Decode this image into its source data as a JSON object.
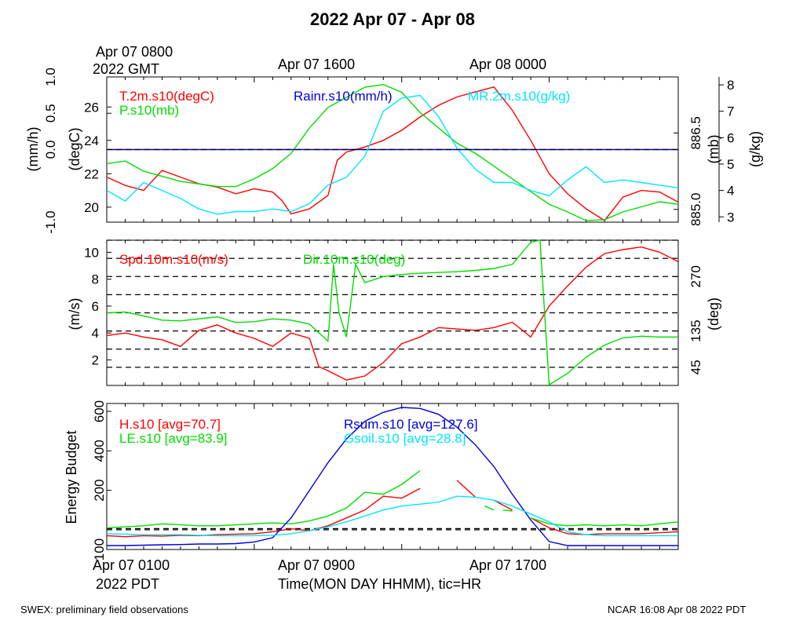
{
  "title": "2022 Apr 07 - Apr 08",
  "top_axis": {
    "first_label_line1": "Apr 07 0800",
    "first_label_line2": "2022 GMT",
    "labels": [
      "Apr 07 1600",
      "Apr 08 0000"
    ]
  },
  "bottom_axis": {
    "first_label_line1": "Apr 07 0100",
    "first_label_line2": "2022 PDT",
    "labels": [
      "Apr 07 0900",
      "Apr 07 1700"
    ],
    "xlabel": "Time(MON DAY HHMM), tic=HR"
  },
  "footer": {
    "left": "SWEX: preliminary field observations",
    "right": "NCAR 16:08 Apr 08 2022 PDT"
  },
  "colors": {
    "red": "#ff0000",
    "green": "#00dd00",
    "blue": "#0000dd",
    "cyan": "#00e5ff",
    "black": "#000000"
  },
  "chart_data": [
    {
      "type": "line",
      "panel": "top",
      "x_unit": "hours since Apr 07 0100 PDT",
      "xlim": [
        0,
        31
      ],
      "axes": {
        "left_outer": {
          "label": "(mm/h)",
          "ticks": [
            "-1.0",
            "0.0",
            "0.5",
            "1.0"
          ],
          "ylim": [
            -1.0,
            1.0
          ]
        },
        "left_inner": {
          "label": "(degC)",
          "ticks": [
            "20",
            "22",
            "24",
            "26"
          ],
          "ylim": [
            19.1,
            27.8
          ]
        },
        "right_inner": {
          "label": "(mb)",
          "ticks": [
            "885.0",
            "886.5"
          ],
          "ylim": [
            884.75,
            887.6
          ]
        },
        "right_outer": {
          "label": "(g/kg)",
          "ticks": [
            "3",
            "4",
            "5",
            "6",
            "7",
            "8"
          ],
          "ylim": [
            2.8,
            8.3
          ]
        }
      },
      "legend": [
        {
          "label": "T.2m.s10(degC)",
          "color": "#ff0000"
        },
        {
          "label": "P.s10(mb)",
          "color": "#00dd00"
        },
        {
          "label": "Rainr.s10(mm/h)",
          "color": "#0000dd"
        },
        {
          "label": "MR.2m.s10(g/kg)",
          "color": "#00e5ff"
        }
      ],
      "series": [
        {
          "name": "T.2m.s10(degC)",
          "axis": "left_inner",
          "color": "#ff0000",
          "x": [
            0,
            1,
            2,
            2.5,
            3,
            4,
            5,
            6,
            7,
            8,
            9,
            9.5,
            10,
            11,
            12,
            12.5,
            13,
            14,
            15,
            16,
            17,
            18,
            19,
            20,
            21,
            22,
            23,
            24,
            25,
            26,
            27,
            28,
            29,
            30,
            31
          ],
          "y": [
            21.8,
            21.3,
            21.0,
            21.6,
            22.2,
            21.8,
            21.4,
            21.2,
            20.8,
            21.1,
            20.9,
            20.4,
            19.6,
            19.9,
            20.7,
            22.8,
            23.3,
            23.6,
            24.0,
            24.6,
            25.4,
            26.1,
            26.6,
            26.9,
            27.2,
            25.8,
            24.0,
            22.0,
            20.8,
            19.9,
            19.2,
            20.6,
            21.0,
            20.9,
            20.3
          ]
        },
        {
          "name": "P.s10(mb)",
          "axis": "right_inner",
          "color": "#00dd00",
          "x": [
            0,
            1,
            2,
            3,
            4,
            5,
            6,
            7,
            8,
            9,
            10,
            11,
            12,
            13,
            14,
            15,
            16,
            17,
            18,
            19,
            20,
            21,
            22,
            23,
            24,
            25,
            26,
            27,
            28,
            29,
            30,
            31
          ],
          "y": [
            885.9,
            885.95,
            885.75,
            885.65,
            885.55,
            885.5,
            885.45,
            885.45,
            885.6,
            885.8,
            886.1,
            886.6,
            887.0,
            887.2,
            887.4,
            887.45,
            887.3,
            886.9,
            886.6,
            886.3,
            886.1,
            885.85,
            885.6,
            885.35,
            885.1,
            884.95,
            884.78,
            884.8,
            884.95,
            885.05,
            885.15,
            885.1
          ]
        },
        {
          "name": "Rainr.s10(mm/h)",
          "axis": "left_outer",
          "color": "#0000dd",
          "x": [
            0,
            31
          ],
          "y": [
            0.0,
            0.0
          ]
        },
        {
          "name": "MR.2m.s10(g/kg)",
          "axis": "right_outer",
          "color": "#00e5ff",
          "x": [
            0,
            1,
            2,
            3,
            4,
            5,
            6,
            7,
            8,
            9,
            10,
            11,
            12,
            13,
            14,
            15,
            16,
            17,
            18,
            19,
            20,
            21,
            22,
            23,
            24,
            25,
            26,
            27,
            28,
            29,
            30,
            31
          ],
          "y": [
            4.0,
            3.6,
            4.3,
            4.0,
            3.7,
            3.3,
            3.1,
            3.2,
            3.2,
            3.3,
            3.2,
            3.5,
            4.2,
            4.5,
            5.3,
            7.0,
            7.5,
            7.6,
            6.8,
            5.6,
            4.8,
            4.3,
            4.3,
            4.0,
            3.8,
            4.4,
            4.9,
            4.3,
            4.4,
            4.3,
            4.2,
            4.1
          ]
        }
      ]
    },
    {
      "type": "line",
      "panel": "middle",
      "x_unit": "hours since Apr 07 0100 PDT",
      "xlim": [
        0,
        31
      ],
      "axes": {
        "left": {
          "label": "(m/s)",
          "ticks": [
            "2",
            "4",
            "6",
            "8",
            "10"
          ],
          "ylim": [
            0.1,
            10.9
          ]
        },
        "right": {
          "label": "(deg)",
          "ticks": [
            "45",
            "135",
            "270"
          ],
          "ylim": [
            0,
            360
          ]
        }
      },
      "reference_lines_deg": [
        45,
        90,
        135,
        180,
        225,
        270,
        315,
        360
      ],
      "legend": [
        {
          "label": "Spd.10m.s10(m/s)",
          "color": "#ff0000"
        },
        {
          "label": "Dir.10m.s10(deg)",
          "color": "#00dd00"
        }
      ],
      "series": [
        {
          "name": "Spd.10m.s10(m/s)",
          "axis": "left",
          "color": "#ff0000",
          "x": [
            0,
            1,
            2,
            3,
            4,
            5,
            6,
            7,
            8,
            9,
            10,
            11,
            11.5,
            12,
            13,
            14,
            15,
            16,
            17,
            18,
            19,
            20,
            21,
            22,
            23,
            24,
            25,
            26,
            27,
            28,
            29,
            30,
            31
          ],
          "y": [
            3.8,
            4.0,
            3.7,
            3.5,
            3.0,
            4.2,
            4.6,
            4.0,
            3.6,
            3.0,
            4.0,
            3.6,
            1.5,
            1.2,
            0.5,
            0.8,
            1.8,
            3.2,
            3.7,
            4.4,
            4.3,
            4.2,
            4.4,
            4.8,
            3.7,
            6.0,
            7.5,
            8.9,
            9.9,
            10.2,
            10.4,
            10.0,
            9.3
          ]
        },
        {
          "name": "Dir.10m.s10(deg)",
          "axis": "right",
          "color": "#00dd00",
          "x": [
            0,
            1,
            2,
            3,
            4,
            5,
            6,
            7,
            8,
            9,
            10,
            11,
            12,
            12.3,
            12.6,
            13,
            13.5,
            14,
            15,
            16,
            17,
            18,
            19,
            20,
            21,
            22,
            23,
            23.5,
            24,
            25,
            26,
            27,
            28,
            29,
            30,
            31
          ],
          "y": [
            180,
            182,
            172,
            162,
            160,
            165,
            170,
            156,
            158,
            165,
            162,
            152,
            110,
            300,
            180,
            120,
            300,
            255,
            270,
            275,
            278,
            280,
            282,
            285,
            290,
            300,
            355,
            360,
            2,
            30,
            70,
            100,
            118,
            122,
            120,
            120
          ]
        }
      ]
    },
    {
      "type": "line",
      "panel": "bottom",
      "x_unit": "hours since Apr 07 0100 PDT",
      "xlim": [
        0,
        31
      ],
      "axes": {
        "left": {
          "label": "Energy Budget",
          "ticks": [
            "100",
            "200",
            "400",
            "600"
          ],
          "ylim": [
            -100,
            640
          ]
        }
      },
      "reference_line": 0,
      "legend": [
        {
          "label": "H.s10 [avg=70.7]",
          "color": "#ff0000"
        },
        {
          "label": "LE.s10 [avg=83.9]",
          "color": "#00dd00"
        },
        {
          "label": "Rsum.s10 [avg=127.6]",
          "color": "#0000dd"
        },
        {
          "label": "Gsoil.s10 [avg=28.8]",
          "color": "#00e5ff"
        }
      ],
      "series": [
        {
          "name": "H.s10 [avg=70.7]",
          "color": "#ff0000",
          "x": [
            0,
            1,
            2,
            3,
            4,
            5,
            6,
            7,
            8,
            9,
            10,
            11,
            12,
            13,
            14,
            15,
            16,
            17,
            null,
            19,
            20,
            null,
            21,
            22,
            null,
            23,
            24,
            25,
            26,
            27,
            28,
            29,
            30,
            31
          ],
          "y": [
            -30,
            -35,
            -30,
            -32,
            -28,
            -30,
            -25,
            -22,
            -20,
            -10,
            5,
            -5,
            20,
            60,
            100,
            170,
            160,
            210,
            null,
            250,
            165,
            null,
            150,
            100,
            null,
            60,
            10,
            -20,
            -25,
            -20,
            -20,
            -20,
            -15,
            -10
          ]
        },
        {
          "name": "LE.s10 [avg=83.9]",
          "color": "#00dd00",
          "x": [
            0,
            1,
            2,
            3,
            4,
            5,
            6,
            7,
            8,
            9,
            10,
            11,
            12,
            13,
            14,
            15,
            16,
            17,
            null,
            20.5,
            21,
            null,
            21.5,
            22,
            null,
            23,
            24,
            25,
            26,
            27,
            28,
            29,
            30,
            31
          ],
          "y": [
            10,
            15,
            20,
            30,
            25,
            20,
            20,
            25,
            30,
            35,
            30,
            45,
            70,
            110,
            190,
            180,
            230,
            300,
            null,
            120,
            100,
            null,
            100,
            95,
            null,
            60,
            30,
            20,
            25,
            20,
            25,
            20,
            30,
            40
          ]
        },
        {
          "name": "Rsum.s10 [avg=127.6]",
          "color": "#0000dd",
          "x": [
            0,
            1,
            2,
            3,
            4,
            5,
            6,
            7,
            8,
            9,
            10,
            11,
            12,
            13,
            14,
            15,
            16,
            17,
            18,
            19,
            20,
            21,
            22,
            23,
            24,
            25,
            26,
            27,
            28,
            29,
            30,
            31
          ],
          "y": [
            -80,
            -80,
            -78,
            -76,
            -75,
            -72,
            -72,
            -70,
            -62,
            -40,
            60,
            200,
            340,
            460,
            550,
            595,
            620,
            615,
            585,
            520,
            430,
            320,
            180,
            50,
            -60,
            -80,
            -80,
            -80,
            -80,
            -80,
            -80,
            -80
          ]
        },
        {
          "name": "Gsoil.s10 [avg=28.8]",
          "color": "#00e5ff",
          "x": [
            0,
            1,
            2,
            3,
            4,
            5,
            6,
            7,
            8,
            9,
            10,
            11,
            12,
            13,
            14,
            15,
            16,
            17,
            18,
            19,
            20,
            21,
            22,
            23,
            24,
            25,
            26,
            27,
            28,
            29,
            30,
            31
          ],
          "y": [
            -20,
            -22,
            -25,
            -25,
            -25,
            -28,
            -30,
            -30,
            -30,
            -28,
            -20,
            -5,
            15,
            40,
            70,
            100,
            120,
            130,
            140,
            170,
            165,
            150,
            120,
            80,
            40,
            -10,
            -25,
            -30,
            -30,
            -30,
            -30,
            -30
          ]
        }
      ]
    }
  ]
}
